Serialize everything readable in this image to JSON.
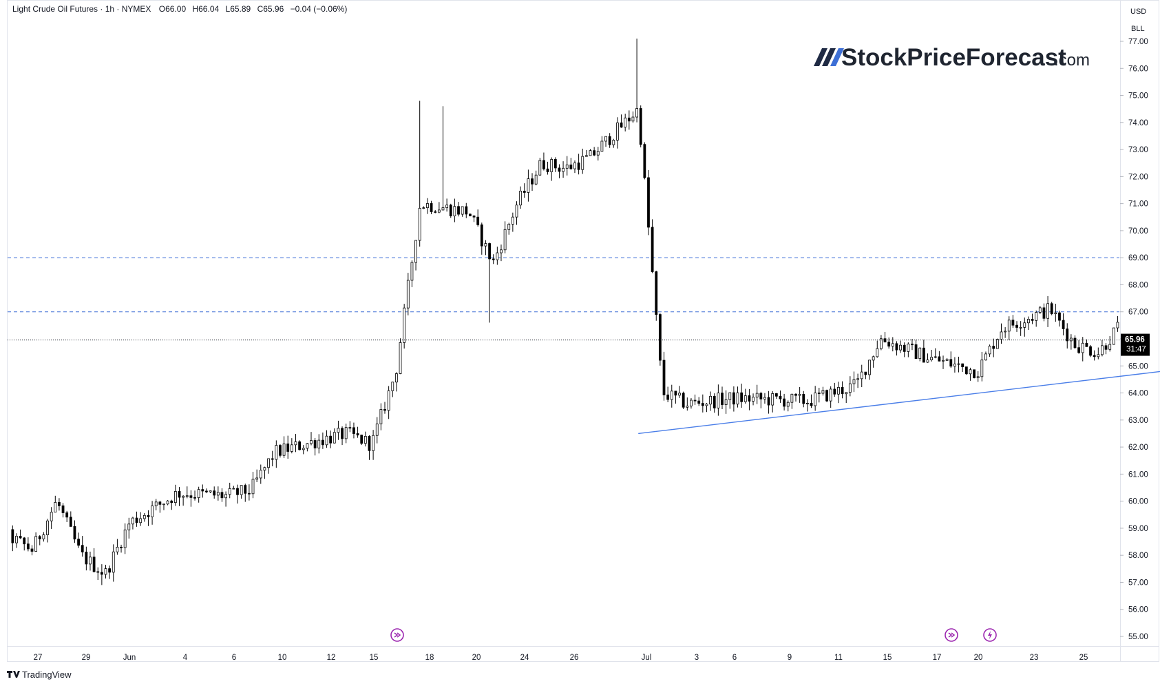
{
  "header": {
    "symbol": "Light Crude Oil Futures · 1h · NYMEX",
    "open": "O66.00",
    "high": "H66.04",
    "low": "L65.89",
    "close": "C65.96",
    "change": "−0.04 (−0.06%)"
  },
  "watermark": {
    "name": "StockPriceForecast",
    "suffix": ".com"
  },
  "brand": "TradingView",
  "price_axis": {
    "unit": "USD",
    "sub_unit": "BLL",
    "last_price": "65.96",
    "countdown": "31:47"
  },
  "colors": {
    "candle": "#000000",
    "trendline": "#4a7ee8",
    "dashed_levels": "#3d6fd6",
    "current_line": "#131722",
    "price_tag_bg": "#000000",
    "event_icon": "#9c27b0"
  },
  "chart_data": {
    "type": "candlestick",
    "title": "Light Crude Oil Futures · 1h · NYMEX",
    "timeframe": "1h",
    "x_tick_labels": [
      "27",
      "29",
      "Jun",
      "4",
      "6",
      "10",
      "12",
      "15",
      "18",
      "20",
      "24",
      "26",
      "Jul",
      "3",
      "6",
      "9",
      "11",
      "15",
      "17",
      "20",
      "23",
      "25"
    ],
    "y_tick_labels": [
      "55.00",
      "56.00",
      "57.00",
      "58.00",
      "59.00",
      "60.00",
      "61.00",
      "62.00",
      "63.00",
      "64.00",
      "65.00",
      "66.00",
      "67.00",
      "68.00",
      "69.00",
      "70.00",
      "71.00",
      "72.00",
      "73.00",
      "74.00",
      "75.00",
      "76.00",
      "77.00"
    ],
    "ylim": [
      54.8,
      77.2
    ],
    "last": 65.96,
    "horizontal_levels": [
      69.0,
      67.0
    ],
    "trendline": {
      "from": {
        "date": "Jun 22",
        "price": 62.5
      },
      "to": {
        "date": "Jul 23",
        "price": 65.8
      }
    },
    "price_path_anchors": [
      {
        "date": "May 26",
        "price": 59.0
      },
      {
        "date": "May 27",
        "price": 58.7
      },
      {
        "date": "May 28",
        "price": 58.2
      },
      {
        "date": "May 29",
        "price": 60.0
      },
      {
        "date": "May 30",
        "price": 58.0
      },
      {
        "date": "May 31",
        "price": 57.3
      },
      {
        "date": "Jun 1",
        "price": 59.2
      },
      {
        "date": "Jun 3",
        "price": 60.3
      },
      {
        "date": "Jun 5",
        "price": 60.2
      },
      {
        "date": "Jun 6",
        "price": 60.4
      },
      {
        "date": "Jun 7",
        "price": 61.8
      },
      {
        "date": "Jun 9",
        "price": 62.3
      },
      {
        "date": "Jun 10",
        "price": 62.5
      },
      {
        "date": "Jun 11",
        "price": 62.1
      },
      {
        "date": "Jun 12",
        "price": 64.8
      },
      {
        "date": "Jun 13",
        "price": 71.0
      },
      {
        "date": "Jun 15",
        "price": 70.7
      },
      {
        "date": "Jun 16",
        "price": 68.8
      },
      {
        "date": "Jun 17",
        "price": 71.0
      },
      {
        "date": "Jun 18",
        "price": 72.5
      },
      {
        "date": "Jun 19",
        "price": 72.3
      },
      {
        "date": "Jun 20",
        "price": 72.7
      },
      {
        "date": "Jun 22",
        "price": 74.5
      },
      {
        "date": "Jun 23",
        "price": 64.0
      },
      {
        "date": "Jun 24",
        "price": 63.6
      },
      {
        "date": "Jun 26",
        "price": 63.8
      },
      {
        "date": "Jun 29",
        "price": 63.7
      },
      {
        "date": "Jul 1",
        "price": 64.3
      },
      {
        "date": "Jul 2",
        "price": 66.0
      },
      {
        "date": "Jul 4",
        "price": 65.3
      },
      {
        "date": "Jul 6",
        "price": 64.8
      },
      {
        "date": "Jul 7",
        "price": 66.4
      },
      {
        "date": "Jul 9",
        "price": 67.1
      },
      {
        "date": "Jul 10",
        "price": 65.8
      },
      {
        "date": "Jul 11",
        "price": 65.5
      },
      {
        "date": "Jul 13",
        "price": 67.8
      },
      {
        "date": "Jul 14",
        "price": 65.5
      },
      {
        "date": "Jul 15",
        "price": 65.2
      },
      {
        "date": "Jul 16",
        "price": 64.5
      },
      {
        "date": "Jul 17",
        "price": 65.4
      },
      {
        "date": "Jul 18",
        "price": 66.3
      },
      {
        "date": "Jul 19",
        "price": 66.9
      },
      {
        "date": "Jul 20",
        "price": 65.96
      }
    ],
    "spikes": [
      {
        "date": "Jun 13",
        "high": 74.8
      },
      {
        "date": "Jun 14",
        "high": 74.6
      },
      {
        "date": "Jun 16",
        "low": 66.6
      },
      {
        "date": "Jun 22",
        "high": 77.1
      },
      {
        "date": "May 31",
        "low": 56.9
      }
    ]
  }
}
